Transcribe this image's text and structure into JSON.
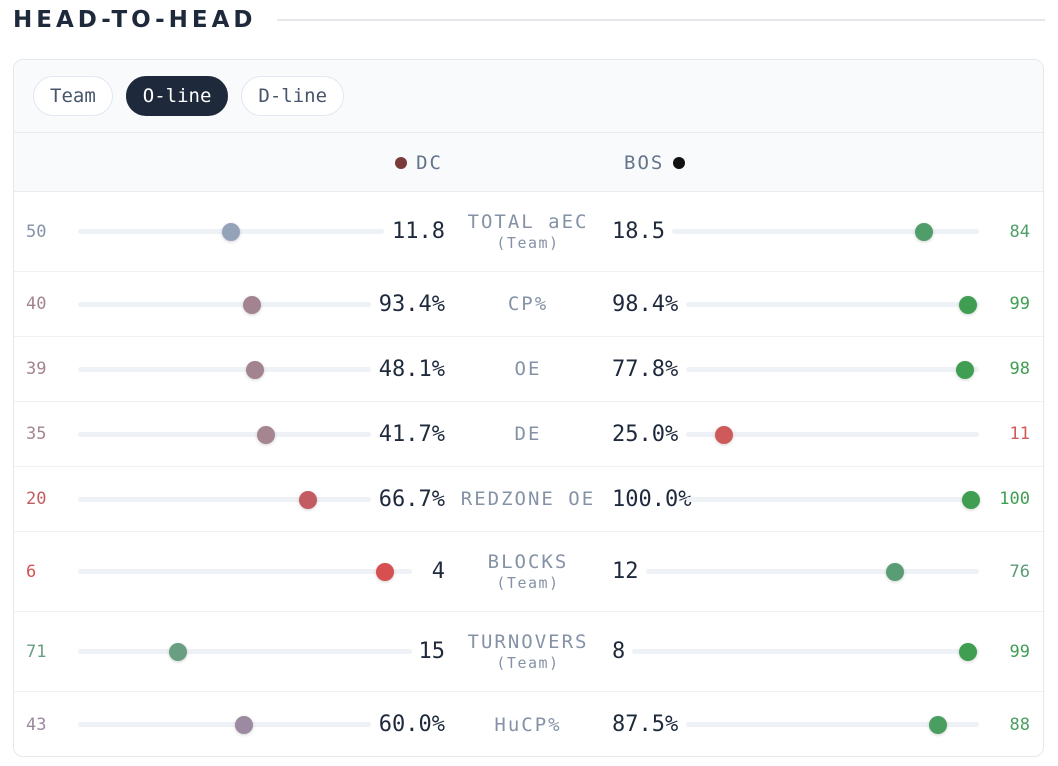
{
  "header": {
    "title": "HEAD-TO-HEAD"
  },
  "tabs": [
    {
      "label": "Team",
      "active": false
    },
    {
      "label": "O-line",
      "active": true
    },
    {
      "label": "D-line",
      "active": false
    }
  ],
  "teams": {
    "left": {
      "name": "DC",
      "color": "#7a3b3b"
    },
    "right": {
      "name": "BOS",
      "color": "#111111"
    }
  },
  "stats": [
    {
      "label": "TOTAL aEC",
      "sub": "(Team)",
      "left_value": "11.8",
      "left_pct": "50",
      "left_color": "#94a3b8",
      "left_text_color": "#8592a6",
      "right_value": "18.5",
      "right_pct": "84",
      "right_color": "#4f9d69",
      "right_text_color": "#4f9d69"
    },
    {
      "label": "CP%",
      "sub": "",
      "left_value": "93.4%",
      "left_pct": "40",
      "left_color": "#a3838f",
      "left_text_color": "#a3838f",
      "right_value": "98.4%",
      "right_pct": "99",
      "right_color": "#3f9e52",
      "right_text_color": "#3f9e52"
    },
    {
      "label": "OE",
      "sub": "",
      "left_value": "48.1%",
      "left_pct": "39",
      "left_color": "#a3838f",
      "left_text_color": "#a3838f",
      "right_value": "77.8%",
      "right_pct": "98",
      "right_color": "#3f9e52",
      "right_text_color": "#3f9e52"
    },
    {
      "label": "DE",
      "sub": "",
      "left_value": "41.7%",
      "left_pct": "35",
      "left_color": "#a58590",
      "left_text_color": "#a58590",
      "right_value": "25.0%",
      "right_pct": "11",
      "right_color": "#cf5a5a",
      "right_text_color": "#cf5a5a"
    },
    {
      "label": "REDZONE OE",
      "sub": "",
      "left_value": "66.7%",
      "left_pct": "20",
      "left_color": "#c25c62",
      "left_text_color": "#c25c62",
      "right_value": "100.0%",
      "right_pct": "100",
      "right_color": "#3f9e52",
      "right_text_color": "#3f9e52"
    },
    {
      "label": "BLOCKS",
      "sub": "(Team)",
      "left_value": "4",
      "left_pct": "6",
      "left_color": "#d65050",
      "left_text_color": "#d65050",
      "right_value": "12",
      "right_pct": "76",
      "right_color": "#5a9c73",
      "right_text_color": "#5a9c73"
    },
    {
      "label": "TURNOVERS",
      "sub": "(Team)",
      "left_value": "15",
      "left_pct": "71",
      "left_color": "#6a9e82",
      "left_text_color": "#6a9e82",
      "right_value": "8",
      "right_pct": "99",
      "right_color": "#3f9e52",
      "right_text_color": "#3f9e52"
    },
    {
      "label": "HuCP%",
      "sub": "",
      "left_value": "60.0%",
      "left_pct": "43",
      "left_color": "#9c8aa0",
      "left_text_color": "#9c8aa0",
      "right_value": "87.5%",
      "right_pct": "88",
      "right_color": "#4a9e5f",
      "right_text_color": "#4a9e5f"
    }
  ]
}
